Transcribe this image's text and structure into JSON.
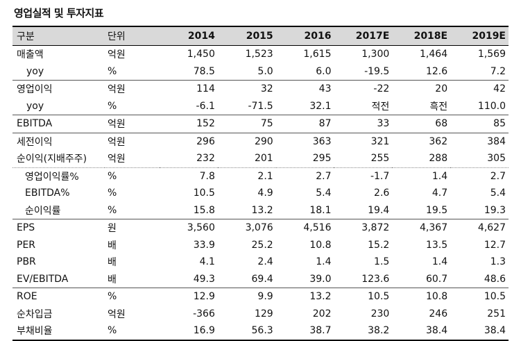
{
  "title": "영업실적 및 투자지표",
  "header": {
    "label": "구분",
    "unit": "단위",
    "years": [
      "2014",
      "2015",
      "2016",
      "2017E",
      "2018E",
      "2019E"
    ]
  },
  "rows": [
    {
      "label": "매출액",
      "unit": "억원",
      "values": [
        "1,450",
        "1,523",
        "1,615",
        "1,300",
        "1,464",
        "1,569"
      ]
    },
    {
      "label": "yoy",
      "unit": "%",
      "values": [
        "78.5",
        "5.0",
        "6.0",
        "-19.5",
        "12.6",
        "7.2"
      ]
    },
    {
      "label": "영업이익",
      "unit": "억원",
      "values": [
        "114",
        "32",
        "43",
        "-22",
        "20",
        "42"
      ]
    },
    {
      "label": "yoy",
      "unit": "%",
      "values": [
        "-6.1",
        "-71.5",
        "32.1",
        "적전",
        "흑전",
        "110.0"
      ]
    },
    {
      "label": "EBITDA",
      "unit": "억원",
      "values": [
        "152",
        "75",
        "87",
        "33",
        "68",
        "85"
      ]
    },
    {
      "label": "세전이익",
      "unit": "억원",
      "values": [
        "296",
        "290",
        "363",
        "321",
        "362",
        "384"
      ]
    },
    {
      "label": "순이익(지배주주)",
      "unit": "억원",
      "values": [
        "232",
        "201",
        "295",
        "255",
        "288",
        "305"
      ]
    },
    {
      "label": "영업이익률%",
      "unit": "%",
      "values": [
        "7.8",
        "2.1",
        "2.7",
        "-1.7",
        "1.4",
        "2.7"
      ]
    },
    {
      "label": "EBITDA%",
      "unit": "%",
      "values": [
        "10.5",
        "4.9",
        "5.4",
        "2.6",
        "4.7",
        "5.4"
      ]
    },
    {
      "label": "순이익률",
      "unit": "%",
      "values": [
        "15.8",
        "13.2",
        "18.1",
        "19.4",
        "19.5",
        "19.3"
      ]
    },
    {
      "label": "EPS",
      "unit": "원",
      "values": [
        "3,560",
        "3,076",
        "4,516",
        "3,872",
        "4,367",
        "4,627"
      ]
    },
    {
      "label": "PER",
      "unit": "배",
      "values": [
        "33.9",
        "25.2",
        "10.8",
        "15.2",
        "13.5",
        "12.7"
      ]
    },
    {
      "label": "PBR",
      "unit": "배",
      "values": [
        "4.1",
        "2.4",
        "1.4",
        "1.5",
        "1.4",
        "1.3"
      ]
    },
    {
      "label": "EV/EBITDA",
      "unit": "배",
      "values": [
        "49.3",
        "69.4",
        "39.0",
        "123.6",
        "60.7",
        "48.6"
      ]
    },
    {
      "label": "ROE",
      "unit": "%",
      "values": [
        "12.9",
        "9.9",
        "13.2",
        "10.5",
        "10.8",
        "10.5"
      ]
    },
    {
      "label": "순차입금",
      "unit": "억원",
      "values": [
        "-366",
        "129",
        "202",
        "230",
        "246",
        "251"
      ]
    },
    {
      "label": "부채비율",
      "unit": "%",
      "values": [
        "16.9",
        "56.3",
        "38.7",
        "38.2",
        "38.4",
        "38.4"
      ]
    }
  ]
}
